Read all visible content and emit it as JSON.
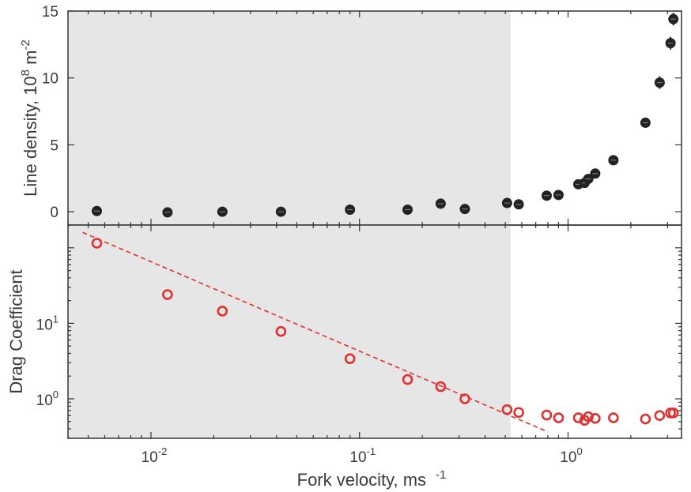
{
  "chart_data": [
    {
      "type": "scatter",
      "panel": "top",
      "ylabel": "Line density, 10",
      "ylabel_exp": "8",
      "ylabel_unit": " m",
      "ylabel_unit_exp": "-2",
      "xscale": "log",
      "yscale": "linear",
      "xlim": [
        0.004,
        3.5
      ],
      "ylim": [
        -1,
        15
      ],
      "yticks": [
        0,
        5,
        10,
        15
      ],
      "yticklabels": [
        "0",
        "5",
        "10",
        "15"
      ],
      "shaded_region_x": [
        0.004,
        0.53
      ],
      "shaded_color": "#e6e6e6",
      "series": [
        {
          "marker": "filled-circle-with-errorbar",
          "color": "#222222",
          "x": [
            0.0055,
            0.012,
            0.022,
            0.042,
            0.09,
            0.17,
            0.245,
            0.32,
            0.51,
            0.58,
            0.79,
            0.9,
            1.12,
            1.2,
            1.25,
            1.35,
            1.65,
            2.35,
            2.75,
            3.1,
            3.2
          ],
          "y": [
            0.05,
            -0.05,
            0.0,
            0.0,
            0.15,
            0.15,
            0.6,
            0.2,
            0.65,
            0.55,
            1.2,
            1.25,
            2.05,
            2.15,
            2.45,
            2.85,
            3.85,
            6.65,
            9.65,
            12.6,
            14.4
          ]
        }
      ]
    },
    {
      "type": "scatter",
      "panel": "bottom",
      "xlabel": "Fork velocity, ms",
      "xlabel_exp": "-1",
      "ylabel": "Drag Coefficient",
      "xscale": "log",
      "yscale": "log",
      "xlim": [
        0.004,
        3.5
      ],
      "ylim": [
        0.3,
        200
      ],
      "xticks": [
        0.01,
        0.1,
        1
      ],
      "xticklabels": [
        {
          "base": "10",
          "exp": "-2"
        },
        {
          "base": "10",
          "exp": "-1"
        },
        {
          "base": "10",
          "exp": "0"
        }
      ],
      "yticks": [
        1,
        10
      ],
      "yticklabels": [
        {
          "base": "10",
          "exp": "0"
        },
        {
          "base": "10",
          "exp": "1"
        }
      ],
      "shaded_region_x": [
        0.004,
        0.53
      ],
      "shaded_color": "#e6e6e6",
      "series": [
        {
          "marker": "open-circle",
          "color": "#e03030",
          "x": [
            0.0055,
            0.012,
            0.022,
            0.042,
            0.09,
            0.17,
            0.245,
            0.32,
            0.51,
            0.58,
            0.79,
            0.9,
            1.12,
            1.2,
            1.25,
            1.35,
            1.65,
            2.35,
            2.75,
            3.1,
            3.2
          ],
          "y": [
            115,
            24,
            14.5,
            7.8,
            3.4,
            1.8,
            1.45,
            1.0,
            0.72,
            0.66,
            0.61,
            0.56,
            0.56,
            0.52,
            0.58,
            0.55,
            0.56,
            0.54,
            0.6,
            0.65,
            0.65
          ]
        }
      ],
      "fit_line": {
        "style": "dashed",
        "color": "#e03030",
        "x": [
          0.0047,
          0.8
        ],
        "y": [
          160,
          0.365
        ]
      }
    }
  ]
}
